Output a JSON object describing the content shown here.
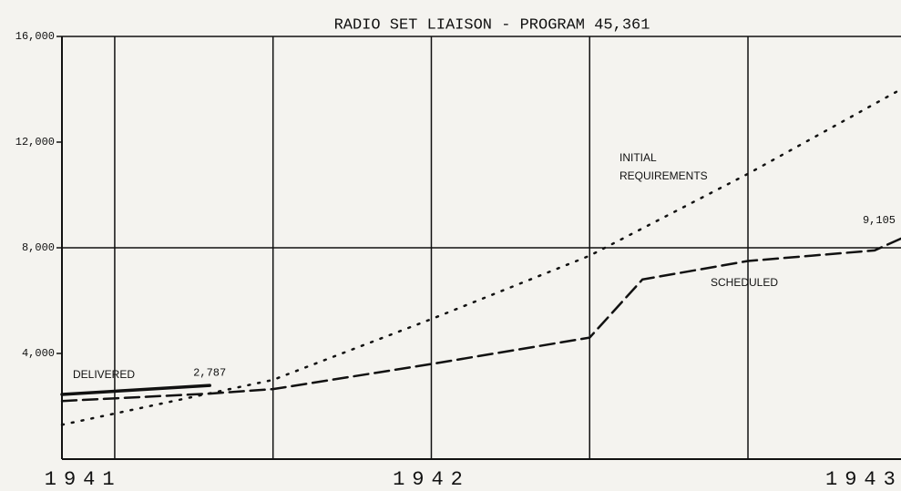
{
  "chart_data": {
    "type": "line",
    "title": "RADIO SET LIAISON - PROGRAM 45,361",
    "xlim": [
      0,
      15.9
    ],
    "xticks": [
      {
        "value": 0.4,
        "label": "1941"
      },
      {
        "value": 7,
        "label": "1942"
      },
      {
        "value": 15.2,
        "label": "1943"
      }
    ],
    "xgrid": [
      1,
      4,
      7,
      10,
      13
    ],
    "ylim": [
      0,
      16000
    ],
    "yticks": [
      {
        "value": 4000,
        "label": "4,000"
      },
      {
        "value": 8000,
        "label": "8,000"
      },
      {
        "value": 12000,
        "label": "12,000"
      },
      {
        "value": 16000,
        "label": "16,000"
      }
    ],
    "ygrid": [
      8000,
      16000
    ],
    "series": [
      {
        "name": "DELIVERED",
        "color": "#111",
        "style": "solid",
        "x": [
          0,
          2.8
        ],
        "values": [
          2450,
          2787
        ],
        "value_labels": [
          null,
          "2,787"
        ]
      },
      {
        "name": "SCHEDULED",
        "color": "#111",
        "style": "dashed",
        "x": [
          0,
          2.8,
          4,
          7,
          10,
          11,
          13,
          15.4,
          15.9
        ],
        "values": [
          2200,
          2480,
          2650,
          3600,
          4600,
          6800,
          7500,
          7900,
          8350
        ]
      },
      {
        "name": "INITIAL REQUIREMENTS",
        "color": "#111",
        "style": "dotted",
        "x": [
          0,
          4,
          7,
          10,
          13,
          15.9
        ],
        "values": [
          1300,
          3000,
          5300,
          7700,
          10800,
          14000
        ]
      }
    ],
    "annotations": [
      "9,105"
    ]
  }
}
